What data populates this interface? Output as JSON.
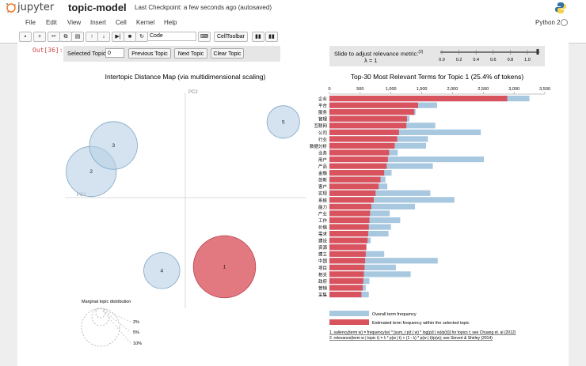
{
  "header": {
    "logo_text": "jupyter",
    "notebook_name": "topic-model",
    "checkpoint": "Last Checkpoint: a few seconds ago (autosaved)"
  },
  "menu": {
    "items": [
      "File",
      "Edit",
      "View",
      "Insert",
      "Cell",
      "Kernel",
      "Help"
    ],
    "kernel": "Python 2"
  },
  "toolbar": {
    "cell_type": "Code",
    "celltoolbar_label": "CellToolbar"
  },
  "cell": {
    "prompt": "Out[36]:"
  },
  "controls": {
    "selected_topic_label": "Selected Topic:",
    "selected_topic_value": "0",
    "previous_label": "Previous Topic",
    "next_label": "Next Topic",
    "clear_label": "Clear Topic",
    "slider_label": "Slide to adjust relevance metric:",
    "slider_superscript": "(2)",
    "lambda_label": "λ = 1",
    "slider_ticks": [
      "0.0",
      "0.2",
      "0.4",
      "0.6",
      "0.8",
      "1.0"
    ],
    "lambda_value": 1.0
  },
  "intertopic_map": {
    "title": "Intertopic Distance Map (via multidimensional scaling)",
    "pc1_label": "PC1",
    "pc2_label": "PC2",
    "selected_topic": 1,
    "topics": [
      {
        "label": "1",
        "pc1": 0.3,
        "pc2": -0.53,
        "share": 25.4
      },
      {
        "label": "2",
        "pc1": -0.72,
        "pc2": 0.2,
        "share": 16.5
      },
      {
        "label": "3",
        "pc1": -0.55,
        "pc2": 0.4,
        "share": 15.0
      },
      {
        "label": "4",
        "pc1": -0.18,
        "pc2": -0.56,
        "share": 8.5
      },
      {
        "label": "5",
        "pc1": 0.75,
        "pc2": 0.58,
        "share": 7.0
      }
    ],
    "marginal_title": "Marginal topic distribution",
    "marginal_labels": [
      "2%",
      "5%",
      "10%"
    ]
  },
  "chart_data": {
    "type": "bar",
    "title": "Top-30 Most Relevant Terms for Topic 1 (25.4% of tokens)",
    "x_ticks": [
      "0",
      "500",
      "1,000",
      "1,500",
      "2,000",
      "2,500",
      "3,000",
      "3,500"
    ],
    "xlim": [
      0,
      3500
    ],
    "categories": [
      "企业",
      "平台",
      "服务",
      "管理",
      "互联网",
      "公司",
      "行业",
      "数据分析",
      "业务",
      "用户",
      "产品",
      "金融",
      "创新",
      "客户",
      "实现",
      "系统",
      "能力",
      "产业",
      "工作",
      "价值",
      "需求",
      "建设",
      "资源",
      "建立",
      "中国",
      "项目",
      "相关",
      "政府",
      "营销",
      "采集"
    ],
    "series": [
      {
        "name": "Overall term frequency",
        "color": "#a8c8e0",
        "values": [
          3250,
          1750,
          1400,
          1300,
          1720,
          2460,
          1600,
          1570,
          1110,
          2510,
          1680,
          1010,
          910,
          940,
          1640,
          2030,
          1390,
          980,
          1150,
          1000,
          960,
          670,
          600,
          890,
          1760,
          1080,
          1320,
          650,
          590,
          640
        ]
      },
      {
        "name": "Estimated term frequency within the selected topic",
        "color": "#d9535e",
        "values": [
          2890,
          1440,
          1380,
          1260,
          1250,
          1130,
          1100,
          1060,
          970,
          950,
          930,
          890,
          830,
          800,
          750,
          720,
          680,
          660,
          650,
          640,
          630,
          620,
          600,
          590,
          580,
          570,
          560,
          550,
          540,
          520
        ]
      }
    ],
    "legend": [
      "Overall term frequency",
      "Estimated term frequency within the selected topic"
    ]
  },
  "footnotes": {
    "note1": "1. saliency(term w) = frequency(w) * [sum_t p(t | w) * log(p(t | w)/p(t))] for topics t; see Chuang et. al (2012)",
    "note2": "2. relevance(term w | topic t) = λ * p(w | t) + (1 - λ) * p(w | t)/p(w); see Sievert & Shirley (2014)"
  }
}
